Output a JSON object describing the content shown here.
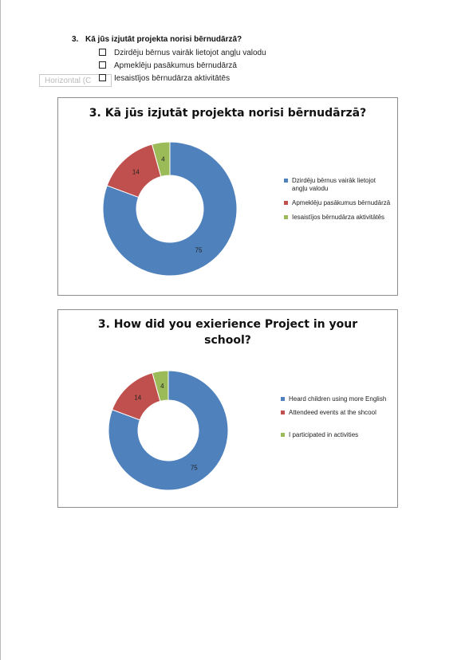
{
  "question": {
    "number": "3.",
    "text": "Kā jūs izjutāt projekta norisi  bērnudārzā?"
  },
  "options": [
    "Dzirdēju bērnus vairāk lietojot angļu valodu",
    "Apmeklēju pasākumus bērnudārzā",
    "Iesaistījos bērnudārza aktivitātēs"
  ],
  "tooltip": "Horizontal (C",
  "colors": {
    "blue": "#4f81bd",
    "red": "#c0504d",
    "green": "#9bbb59"
  },
  "chart_data": [
    {
      "type": "pie",
      "title": "3. Kā jūs izjutāt projekta norisi  bērnudārzā?",
      "series": [
        {
          "name": "",
          "values": [
            75,
            14,
            4
          ]
        }
      ],
      "categories": [
        "Dzirdēju bērnus vairāk lietojot angļu valodu",
        "Apmeklēju pasākumus bērnudārzā",
        "Iesaistījos bērnudārza aktivitātēs"
      ],
      "data_labels": [
        "75",
        "14",
        "4"
      ],
      "legend": "right"
    },
    {
      "type": "pie",
      "title": "3. How did you exierience Project in your school?",
      "series": [
        {
          "name": "",
          "values": [
            75,
            14,
            4
          ]
        }
      ],
      "categories": [
        "Heard children using more English",
        "Attendeed events at the shcool",
        "I participated in activities"
      ],
      "data_labels": [
        "75",
        "14",
        "4"
      ],
      "legend": "right"
    }
  ]
}
